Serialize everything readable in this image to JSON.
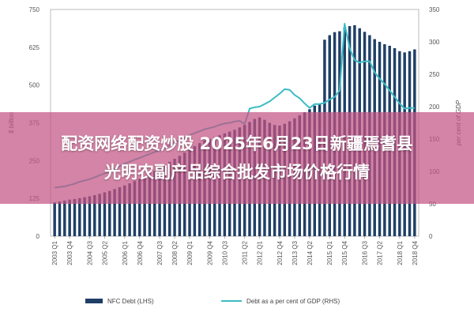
{
  "banner": {
    "line1": "配资网络配资炒股 2025年6月23日新疆焉耆县",
    "line2": "光明农副产品综合批发市场价格行情"
  },
  "colors": {
    "bar": "#1f3f66",
    "line": "#3cbcc4",
    "banner": "#c45484"
  },
  "chart_data": {
    "type": "bar",
    "ylabel_left": "$ billion",
    "ylabel_right": "per cent of GDP",
    "ylim_left": [
      0,
      750
    ],
    "ylim_right": [
      0,
      350
    ],
    "yticks_left": [
      "0",
      "125",
      "250",
      "375",
      "500",
      "625",
      "750"
    ],
    "yticks_right": [
      "0",
      "50",
      "100",
      "150",
      "200",
      "250",
      "300",
      "350"
    ],
    "xtick_labels": [
      "2003 Q1",
      "2003 Q4",
      "2004 Q3",
      "2005 Q2",
      "2006 Q1",
      "2006 Q4",
      "2007 Q3",
      "2008 Q2",
      "2009 Q1",
      "2009 Q4",
      "2010 Q3",
      "2011 Q2",
      "2012 Q1",
      "2012 Q4",
      "2013 Q3",
      "2014 Q2",
      "2015 Q1",
      "2015 Q4",
      "2016 Q3",
      "2017 Q2",
      "2018 Q1",
      "2018 Q4"
    ],
    "grid": false,
    "legend_position": "bottom",
    "series": [
      {
        "name": "NFC Debt (LHS)",
        "type": "bar",
        "axis": "left",
        "values": [
          112,
          115,
          118,
          121,
          123,
          126,
          129,
          132,
          136,
          140,
          145,
          150,
          156,
          162,
          168,
          175,
          182,
          190,
          198,
          207,
          216,
          226,
          236,
          246,
          256,
          266,
          276,
          286,
          298,
          308,
          316,
          322,
          328,
          334,
          340,
          346,
          352,
          360,
          368,
          378,
          388,
          393,
          385,
          375,
          368,
          366,
          372,
          380,
          390,
          400,
          410,
          420,
          432,
          436,
          650,
          665,
          675,
          678,
          690,
          695,
          698,
          688,
          676,
          665,
          652,
          643,
          635,
          630,
          622,
          612,
          608,
          612,
          618
        ]
      },
      {
        "name": "Debt as a per cent of GDP (RHS)",
        "type": "line",
        "axis": "right",
        "values": [
          75,
          76,
          77,
          79,
          81,
          84,
          86,
          88,
          91,
          94,
          97,
          100,
          104,
          108,
          112,
          115,
          118,
          121,
          124,
          127,
          130,
          133,
          136,
          140,
          144,
          148,
          152,
          156,
          159,
          162,
          165,
          167,
          169,
          172,
          174,
          175,
          177,
          178,
          173,
          197,
          199,
          200,
          204,
          208,
          214,
          220,
          227,
          226,
          218,
          213,
          205,
          198,
          204,
          204,
          206,
          211,
          215,
          225,
          328,
          290,
          272,
          268,
          270,
          270,
          253,
          243,
          235,
          225,
          215,
          205,
          197,
          198,
          198
        ]
      }
    ]
  }
}
